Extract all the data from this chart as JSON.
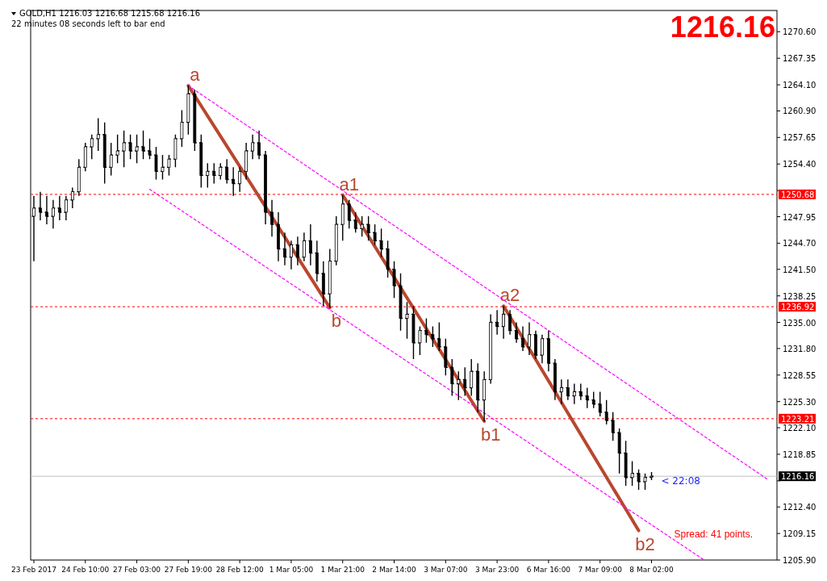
{
  "chart_data": {
    "type": "candlestick",
    "title": "GOLD,H1  1216.03 1216.68 1215.68 1216.16",
    "subtitle": "22 minutes 08 seconds left to bar end",
    "categories": [
      "23 Feb 2017",
      null,
      null,
      null,
      null,
      null,
      null,
      null,
      "24 Feb 10:00",
      null,
      null,
      null,
      null,
      null,
      null,
      null,
      "27 Feb 03:00",
      null,
      null,
      null,
      null,
      null,
      null,
      null,
      "27 Feb 19:00",
      null,
      null,
      null,
      null,
      null,
      null,
      null,
      "28 Feb 12:00",
      null,
      null,
      null,
      null,
      null,
      null,
      null,
      "1 Mar 05:00",
      null,
      null,
      null,
      null,
      null,
      null,
      null,
      "1 Mar 21:00",
      null,
      null,
      null,
      null,
      null,
      null,
      null,
      "2 Mar 14:00",
      null,
      null,
      null,
      null,
      null,
      null,
      null,
      "3 Mar 07:00",
      null,
      null,
      null,
      null,
      null,
      null,
      null,
      "3 Mar 23:00",
      null,
      null,
      null,
      null,
      null,
      null,
      null,
      "6 Mar 16:00",
      null,
      null,
      null,
      null,
      null,
      null,
      null,
      "7 Mar 09:00",
      null,
      null,
      null,
      null,
      null,
      null,
      null,
      "8 Mar 02:00",
      null,
      null,
      null,
      null,
      null,
      null,
      null,
      null,
      null,
      null,
      null,
      null,
      null,
      null,
      null,
      null,
      null,
      null,
      null
    ],
    "color": "#000000",
    "ohlc": [
      [
        1248,
        1250.5,
        1242.5,
        1249
      ],
      [
        1249,
        1251,
        1247.5,
        1248.5
      ],
      [
        1248.5,
        1250.5,
        1247,
        1248
      ],
      [
        1248,
        1250,
        1246.5,
        1249
      ],
      [
        1249,
        1250.5,
        1247.5,
        1248.5
      ],
      [
        1248.5,
        1250.5,
        1247.5,
        1250
      ],
      [
        1250,
        1251.5,
        1249,
        1251
      ],
      [
        1251,
        1255,
        1250.5,
        1254
      ],
      [
        1254,
        1257,
        1253.5,
        1256.5
      ],
      [
        1256.5,
        1258,
        1255,
        1257.5
      ],
      [
        1257.5,
        1260,
        1256,
        1258
      ],
      [
        1258,
        1259.5,
        1252,
        1254
      ],
      [
        1254,
        1257,
        1253,
        1255.5
      ],
      [
        1255.5,
        1258,
        1254.5,
        1256
      ],
      [
        1256,
        1258.5,
        1254,
        1257
      ],
      [
        1257,
        1258,
        1255,
        1256
      ],
      [
        1256,
        1258,
        1254.5,
        1256.5
      ],
      [
        1256.5,
        1258.5,
        1255,
        1256
      ],
      [
        1256,
        1257.5,
        1255,
        1255.5
      ],
      [
        1255.5,
        1256.5,
        1252.5,
        1253.5
      ],
      [
        1253.5,
        1255.5,
        1252.5,
        1254
      ],
      [
        1254,
        1255.5,
        1253,
        1255
      ],
      [
        1255,
        1258,
        1254,
        1257.5
      ],
      [
        1257.5,
        1261,
        1256.5,
        1259.5
      ],
      [
        1259.5,
        1264,
        1258,
        1263
      ],
      [
        1263,
        1263.5,
        1256,
        1257
      ],
      [
        1257,
        1258,
        1251.5,
        1253
      ],
      [
        1253,
        1254.5,
        1251.5,
        1253.5
      ],
      [
        1253.5,
        1254.5,
        1252,
        1253
      ],
      [
        1253,
        1254.5,
        1252.5,
        1254
      ],
      [
        1254,
        1255,
        1252,
        1252.5
      ],
      [
        1252.5,
        1254,
        1250.5,
        1252
      ],
      [
        1252,
        1254,
        1251,
        1253.5
      ],
      [
        1253.5,
        1257,
        1252.5,
        1256
      ],
      [
        1256,
        1258,
        1255,
        1257
      ],
      [
        1257,
        1258.5,
        1255,
        1255.5
      ],
      [
        1255.5,
        1256,
        1247,
        1248.5
      ],
      [
        1248.5,
        1250,
        1245.5,
        1247
      ],
      [
        1247,
        1248.5,
        1242.5,
        1244
      ],
      [
        1244,
        1246,
        1242,
        1243
      ],
      [
        1243,
        1245,
        1241.5,
        1244.5
      ],
      [
        1244.5,
        1245.5,
        1242,
        1243
      ],
      [
        1243,
        1246,
        1242.5,
        1245
      ],
      [
        1245,
        1247,
        1242,
        1243.5
      ],
      [
        1243.5,
        1245,
        1240,
        1241
      ],
      [
        1241,
        1242.5,
        1237,
        1238.5
      ],
      [
        1238.5,
        1244,
        1236.8,
        1242.5
      ],
      [
        1242.5,
        1248,
        1242,
        1247
      ],
      [
        1247,
        1250.6,
        1245,
        1249.5
      ],
      [
        1249.5,
        1250,
        1246.5,
        1247.5
      ],
      [
        1247.5,
        1248.5,
        1246,
        1246.5
      ],
      [
        1246.5,
        1248,
        1245.5,
        1247
      ],
      [
        1247,
        1248,
        1245,
        1246
      ],
      [
        1246,
        1247,
        1244.5,
        1245
      ],
      [
        1245,
        1246.5,
        1243,
        1244
      ],
      [
        1244,
        1245,
        1240.5,
        1241.5
      ],
      [
        1241.5,
        1242.5,
        1238,
        1239.5
      ],
      [
        1239.5,
        1241,
        1234,
        1235.5
      ],
      [
        1235.5,
        1237.5,
        1233,
        1236
      ],
      [
        1236,
        1237,
        1230.5,
        1232.5
      ],
      [
        1232.5,
        1234.5,
        1231,
        1234
      ],
      [
        1234,
        1235.5,
        1232.5,
        1233.5
      ],
      [
        1233.5,
        1234.5,
        1232,
        1233
      ],
      [
        1233,
        1235,
        1231.5,
        1232
      ],
      [
        1232,
        1233,
        1228.5,
        1229.5
      ],
      [
        1229.5,
        1230.5,
        1226,
        1227.5
      ],
      [
        1227.5,
        1229,
        1225.5,
        1228
      ],
      [
        1228,
        1229.5,
        1226,
        1227
      ],
      [
        1227,
        1230.5,
        1226,
        1229
      ],
      [
        1229,
        1230,
        1224,
        1225.5
      ],
      [
        1225.5,
        1229,
        1222.9,
        1228
      ],
      [
        1228,
        1236,
        1227.5,
        1235
      ],
      [
        1235,
        1236.5,
        1233.5,
        1234.5
      ],
      [
        1234.5,
        1237,
        1233,
        1236
      ],
      [
        1236,
        1236.5,
        1233.5,
        1234
      ],
      [
        1234,
        1235,
        1232.5,
        1233
      ],
      [
        1233,
        1234.5,
        1231.5,
        1232
      ],
      [
        1232,
        1235,
        1231,
        1233.5
      ],
      [
        1233.5,
        1234,
        1230.5,
        1231
      ],
      [
        1231,
        1233.5,
        1230,
        1233
      ],
      [
        1233,
        1234,
        1229,
        1230
      ],
      [
        1230,
        1230.5,
        1225.5,
        1226.5
      ],
      [
        1226.5,
        1228,
        1225,
        1227
      ],
      [
        1227,
        1228,
        1225.5,
        1226
      ],
      [
        1226,
        1227.5,
        1225,
        1226.5
      ],
      [
        1226.5,
        1227.5,
        1225.5,
        1226
      ],
      [
        1226,
        1227,
        1224.5,
        1225.5
      ],
      [
        1225.5,
        1226.5,
        1224.5,
        1225
      ],
      [
        1225,
        1226.5,
        1223.5,
        1224
      ],
      [
        1224,
        1225.5,
        1222.5,
        1223
      ],
      [
        1223,
        1224,
        1220.5,
        1221.5
      ],
      [
        1221.5,
        1222,
        1216.5,
        1219
      ],
      [
        1219,
        1220.5,
        1215,
        1216
      ],
      [
        1216,
        1218,
        1215,
        1216.5
      ],
      [
        1216.5,
        1217,
        1214.5,
        1215.5
      ],
      [
        1215.5,
        1216.5,
        1214.5,
        1216
      ],
      [
        1216.03,
        1216.68,
        1215.68,
        1216.16
      ],
      null,
      null,
      null,
      null,
      null,
      null,
      null,
      null,
      null,
      null,
      null,
      null,
      null,
      null,
      null,
      null,
      null,
      null,
      null
    ],
    "series": [
      {
        "type": "line",
        "color": "#b9472e",
        "line_style": "solid",
        "values": [
          null,
          null,
          null,
          null,
          null,
          null,
          null,
          null,
          null,
          null,
          null,
          null,
          null,
          null,
          null,
          null,
          null,
          null,
          null,
          null,
          null,
          null,
          null,
          null,
          1264,
          null,
          null,
          null,
          null,
          null,
          null,
          null,
          null,
          null,
          null,
          null,
          null,
          null,
          null,
          null,
          null,
          null,
          null,
          null,
          null,
          null,
          1236.8,
          null,
          null,
          null,
          null,
          null,
          null,
          null,
          null,
          null,
          null,
          null,
          null,
          null,
          null,
          null,
          null,
          null,
          null,
          null,
          null,
          null,
          null,
          null,
          null,
          null,
          null,
          null,
          null,
          null,
          null,
          null,
          null,
          null,
          null,
          null,
          null,
          null,
          null,
          null,
          null,
          null,
          null,
          null,
          null,
          null,
          null,
          null,
          null,
          null,
          null,
          null,
          null,
          null,
          null,
          null,
          null,
          null,
          null,
          null,
          null,
          null,
          null,
          null,
          null,
          null,
          null,
          null,
          null,
          null
        ],
        "value_labels": [
          null,
          null,
          null,
          null,
          null,
          null,
          null,
          null,
          null,
          null,
          null,
          null,
          null,
          null,
          null,
          null,
          null,
          null,
          null,
          null,
          null,
          null,
          null,
          null,
          "a",
          null,
          null,
          null,
          null,
          null,
          null,
          null,
          null,
          null,
          null,
          null,
          null,
          null,
          null,
          null,
          null,
          null,
          null,
          null,
          null,
          null,
          "b",
          null,
          null,
          null,
          null,
          null,
          null,
          null,
          null,
          null,
          null,
          null,
          null,
          null,
          null,
          null,
          null,
          null,
          null,
          null,
          null,
          null,
          null,
          null,
          null,
          null,
          null,
          null,
          null,
          null,
          null,
          null,
          null,
          null,
          null,
          null,
          null,
          null,
          null,
          null,
          null,
          null,
          null,
          null,
          null,
          null,
          null,
          null,
          null,
          null,
          null,
          null,
          null,
          null,
          null,
          null,
          null,
          null,
          null,
          null,
          null,
          null,
          null,
          null,
          null,
          null,
          null,
          null,
          null,
          null
        ]
      },
      {
        "type": "line",
        "color": "#b9472e",
        "line_style": "solid",
        "values": [
          null,
          null,
          null,
          null,
          null,
          null,
          null,
          null,
          null,
          null,
          null,
          null,
          null,
          null,
          null,
          null,
          null,
          null,
          null,
          null,
          null,
          null,
          null,
          null,
          null,
          null,
          null,
          null,
          null,
          null,
          null,
          null,
          null,
          null,
          null,
          null,
          null,
          null,
          null,
          null,
          null,
          null,
          null,
          null,
          null,
          null,
          null,
          null,
          1250.6,
          null,
          null,
          null,
          null,
          null,
          null,
          null,
          null,
          null,
          null,
          null,
          null,
          null,
          null,
          null,
          null,
          null,
          null,
          null,
          null,
          null,
          1222.9,
          null,
          null,
          null,
          null,
          null,
          null,
          null,
          null,
          null,
          null,
          null,
          null,
          null,
          null,
          null,
          null,
          null,
          null,
          null,
          null,
          null,
          null,
          null,
          null,
          null,
          null,
          null,
          null,
          null,
          null,
          null,
          null,
          null,
          null,
          null,
          null,
          null,
          null,
          null,
          null,
          null,
          null,
          null,
          null,
          null
        ],
        "value_labels": [
          null,
          null,
          null,
          null,
          null,
          null,
          null,
          null,
          null,
          null,
          null,
          null,
          null,
          null,
          null,
          null,
          null,
          null,
          null,
          null,
          null,
          null,
          null,
          null,
          null,
          null,
          null,
          null,
          null,
          null,
          null,
          null,
          null,
          null,
          null,
          null,
          null,
          null,
          null,
          null,
          null,
          null,
          null,
          null,
          null,
          null,
          null,
          null,
          "a1",
          null,
          null,
          null,
          null,
          null,
          null,
          null,
          null,
          null,
          null,
          null,
          null,
          null,
          null,
          null,
          null,
          null,
          null,
          null,
          null,
          null,
          "b1",
          null,
          null,
          null,
          null,
          null,
          null,
          null,
          null,
          null,
          null,
          null,
          null,
          null,
          null,
          null,
          null,
          null,
          null,
          null,
          null,
          null,
          null,
          null,
          null,
          null,
          null,
          null,
          null,
          null,
          null,
          null,
          null,
          null,
          null,
          null,
          null,
          null,
          null,
          null,
          null,
          null,
          null,
          null,
          null,
          null
        ]
      },
      {
        "type": "line",
        "color": "#b9472e",
        "line_style": "solid",
        "values": [
          null,
          null,
          null,
          null,
          null,
          null,
          null,
          null,
          null,
          null,
          null,
          null,
          null,
          null,
          null,
          null,
          null,
          null,
          null,
          null,
          null,
          null,
          null,
          null,
          null,
          null,
          null,
          null,
          null,
          null,
          null,
          null,
          null,
          null,
          null,
          null,
          null,
          null,
          null,
          null,
          null,
          null,
          null,
          null,
          null,
          null,
          null,
          null,
          null,
          null,
          null,
          null,
          null,
          null,
          null,
          null,
          null,
          null,
          null,
          null,
          null,
          null,
          null,
          null,
          null,
          null,
          null,
          null,
          null,
          null,
          null,
          null,
          null,
          1237,
          null,
          null,
          null,
          null,
          null,
          null,
          null,
          null,
          null,
          null,
          null,
          null,
          null,
          null,
          null,
          null,
          null,
          null,
          null,
          null,
          1209.5,
          null,
          null,
          null,
          null,
          null,
          null,
          null,
          null,
          null,
          null,
          null,
          null,
          null,
          null,
          null,
          null,
          null,
          null,
          null,
          null,
          null
        ],
        "value_labels": [
          null,
          null,
          null,
          null,
          null,
          null,
          null,
          null,
          null,
          null,
          null,
          null,
          null,
          null,
          null,
          null,
          null,
          null,
          null,
          null,
          null,
          null,
          null,
          null,
          null,
          null,
          null,
          null,
          null,
          null,
          null,
          null,
          null,
          null,
          null,
          null,
          null,
          null,
          null,
          null,
          null,
          null,
          null,
          null,
          null,
          null,
          null,
          null,
          null,
          null,
          null,
          null,
          null,
          null,
          null,
          null,
          null,
          null,
          null,
          null,
          null,
          null,
          null,
          null,
          null,
          null,
          null,
          null,
          null,
          null,
          null,
          null,
          null,
          "a2",
          null,
          null,
          null,
          null,
          null,
          null,
          null,
          null,
          null,
          null,
          null,
          null,
          null,
          null,
          null,
          null,
          null,
          null,
          null,
          null,
          "b2",
          null,
          null,
          null,
          null,
          null,
          null,
          null,
          null,
          null,
          null,
          null,
          null,
          null,
          null,
          null,
          null,
          null,
          null,
          null,
          null,
          null
        ]
      },
      {
        "type": "line",
        "color": "#ff00ff",
        "line_style": "dashed",
        "values": [
          null,
          null,
          null,
          null,
          null,
          null,
          null,
          null,
          null,
          null,
          null,
          null,
          null,
          null,
          null,
          null,
          null,
          null,
          null,
          null,
          null,
          null,
          null,
          null,
          1264,
          null,
          null,
          null,
          null,
          null,
          null,
          null,
          null,
          null,
          null,
          null,
          null,
          null,
          null,
          null,
          null,
          null,
          null,
          null,
          null,
          null,
          null,
          null,
          null,
          null,
          null,
          null,
          null,
          null,
          null,
          null,
          null,
          null,
          null,
          null,
          null,
          null,
          null,
          null,
          null,
          null,
          null,
          null,
          null,
          null,
          null,
          null,
          null,
          null,
          null,
          null,
          null,
          null,
          null,
          null,
          null,
          null,
          null,
          null,
          null,
          null,
          null,
          null,
          null,
          null,
          null,
          null,
          null,
          null,
          null,
          null,
          null,
          null,
          null,
          null,
          null,
          null,
          null,
          null,
          null,
          null,
          null,
          null,
          null,
          null,
          null,
          null,
          null,
          null,
          1215.8,
          null
        ]
      },
      {
        "type": "line",
        "color": "#ff00ff",
        "line_style": "dashed",
        "values": [
          null,
          null,
          null,
          null,
          null,
          null,
          null,
          null,
          null,
          null,
          null,
          null,
          null,
          null,
          null,
          null,
          null,
          null,
          1251.3,
          null,
          null,
          null,
          null,
          null,
          null,
          null,
          null,
          null,
          null,
          null,
          null,
          null,
          null,
          null,
          null,
          null,
          null,
          null,
          null,
          null,
          null,
          null,
          null,
          null,
          null,
          null,
          null,
          null,
          null,
          null,
          null,
          null,
          null,
          null,
          null,
          null,
          null,
          null,
          null,
          null,
          null,
          null,
          null,
          null,
          null,
          null,
          null,
          null,
          null,
          null,
          null,
          null,
          null,
          null,
          null,
          null,
          null,
          null,
          null,
          null,
          null,
          null,
          null,
          null,
          null,
          null,
          null,
          null,
          null,
          null,
          null,
          null,
          null,
          null,
          null,
          null,
          null,
          null,
          null,
          null,
          null,
          null,
          null,
          null,
          1206,
          null,
          null,
          null,
          null,
          null,
          null,
          null,
          null,
          null,
          null,
          null
        ]
      }
    ],
    "ylim": [
      1205.9,
      1273.2
    ],
    "yticks": [
      {
        "value": 1270.6,
        "label": "1270.60"
      },
      {
        "value": 1267.35,
        "label": "1267.35"
      },
      {
        "value": 1264.1,
        "label": "1264.10"
      },
      {
        "value": 1260.9,
        "label": "1260.90"
      },
      {
        "value": 1257.65,
        "label": "1257.65"
      },
      {
        "value": 1254.4,
        "label": "1254.40"
      },
      {
        "value": 1251.15,
        "label": null
      },
      {
        "value": 1247.95,
        "label": "1247.95"
      },
      {
        "value": 1244.7,
        "label": "1244.70"
      },
      {
        "value": 1241.5,
        "label": "1241.50"
      },
      {
        "value": 1238.25,
        "label": "1238.25"
      },
      {
        "value": 1235,
        "label": "1235.00"
      },
      {
        "value": 1231.8,
        "label": "1231.80"
      },
      {
        "value": 1228.55,
        "label": "1228.55"
      },
      {
        "value": 1225.3,
        "label": "1225.30"
      },
      {
        "value": 1222.1,
        "label": "1222.10"
      },
      {
        "value": 1218.85,
        "label": "1218.85"
      },
      {
        "value": 1215.6,
        "label": null
      },
      {
        "value": 1212.4,
        "label": "1212.40"
      },
      {
        "value": 1209.15,
        "label": "1209.15"
      },
      {
        "value": 1205.9,
        "label": "1205.90"
      }
    ],
    "ref_lines": [
      {
        "axis": "y",
        "value": 1250.68,
        "label": "1250.68",
        "color": "#ff0000",
        "line_style": "dashed"
      },
      {
        "axis": "y",
        "value": 1236.92,
        "label": "1236.92",
        "color": "#ff0000",
        "line_style": "dashed"
      },
      {
        "axis": "y",
        "value": 1223.21,
        "label": "1223.21",
        "color": "#ff0000",
        "line_style": "dashed"
      },
      {
        "axis": "y",
        "value": 1216.16,
        "label": "1216.16",
        "color": "#c0c0c0",
        "line_style": "solid"
      }
    ],
    "annotations": [
      "1216.16",
      "< 22:08",
      "Spread: 41 points."
    ],
    "grid": false,
    "legend": false
  }
}
